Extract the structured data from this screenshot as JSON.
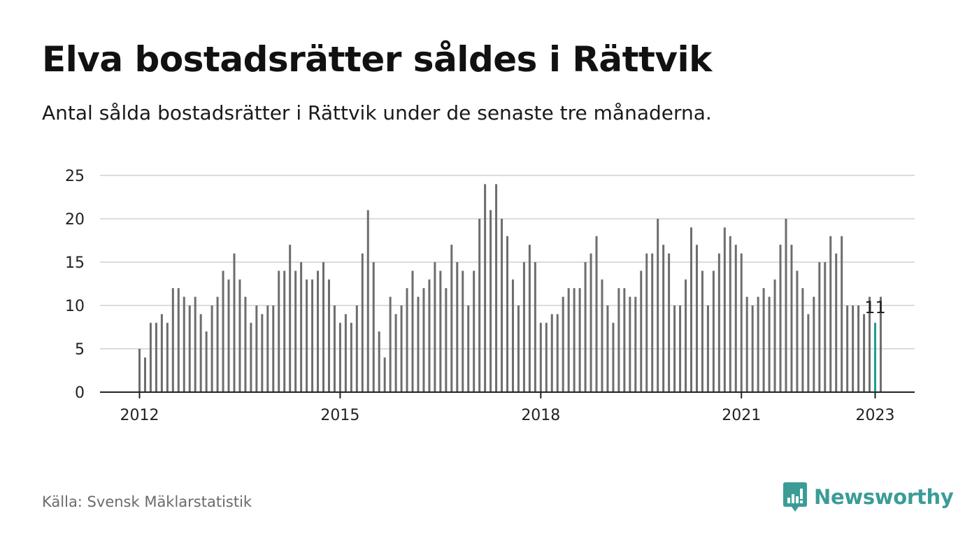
{
  "title": "Elva bostadsrätter såldes i Rättvik",
  "subtitle": "Antal sålda bostadsrätter i Rättvik under de senaste tre månaderna.",
  "source": "Källa: Svensk Mäklarstatistik",
  "brand": "Newsworthy",
  "colors": {
    "bar": "#6d6d6d",
    "highlight": "#1a9e94",
    "grid": "#dcdcdc",
    "axis": "#222222",
    "brand": "#3b9c97"
  },
  "chart_data": {
    "type": "bar",
    "title": "Elva bostadsrätter såldes i Rättvik",
    "subtitle": "Antal sålda bostadsrätter i Rättvik under de senaste tre månaderna.",
    "x_start": "2012-01",
    "x_end": "2023-01",
    "xtick_labels": [
      "2012",
      "2015",
      "2018",
      "2021",
      "2023"
    ],
    "ytick_labels": [
      "0",
      "5",
      "10",
      "15",
      "20",
      "25"
    ],
    "ylim": [
      0,
      25
    ],
    "grid": true,
    "highlight_label": "11",
    "highlight_month": "2023-01",
    "values": [
      5,
      4,
      8,
      8,
      9,
      8,
      12,
      12,
      11,
      10,
      11,
      9,
      7,
      10,
      11,
      14,
      13,
      16,
      13,
      11,
      8,
      10,
      9,
      10,
      10,
      14,
      14,
      17,
      14,
      15,
      13,
      13,
      14,
      15,
      13,
      10,
      8,
      9,
      8,
      10,
      16,
      21,
      15,
      7,
      4,
      11,
      9,
      10,
      12,
      14,
      11,
      12,
      13,
      15,
      14,
      12,
      17,
      15,
      14,
      10,
      14,
      20,
      24,
      21,
      24,
      20,
      18,
      13,
      10,
      15,
      17,
      15,
      8,
      8,
      9,
      9,
      11,
      12,
      12,
      12,
      15,
      16,
      18,
      13,
      10,
      8,
      12,
      12,
      11,
      11,
      14,
      16,
      16,
      20,
      17,
      16,
      10,
      10,
      13,
      19,
      17,
      14,
      10,
      14,
      16,
      19,
      18,
      17,
      16,
      11,
      10,
      11,
      12,
      11,
      13,
      17,
      20,
      17,
      14,
      12,
      9,
      11,
      15,
      15,
      18,
      16,
      18,
      10,
      10,
      10,
      9,
      11,
      8,
      11
    ]
  }
}
